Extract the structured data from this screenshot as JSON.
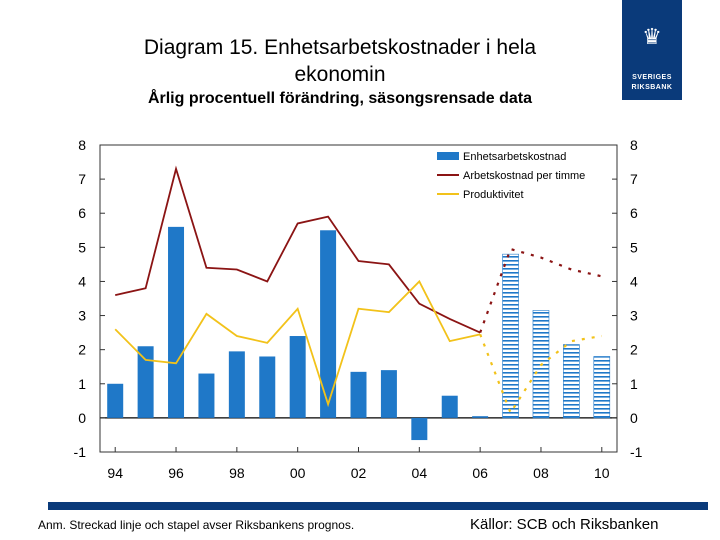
{
  "header": {
    "title_line1": "Diagram 15. Enhetsarbetskostnader i hela",
    "title_line2": "ekonomin",
    "subtitle": "Årlig procentuell förändring, säsongsrensade data"
  },
  "logo": {
    "line1": "SVERIGES",
    "line2": "RIKSBANK",
    "icon": "crown-emblem-icon",
    "color": "#0a3a7a"
  },
  "footer": {
    "note": "Anm. Streckad linje och stapel avser Riksbankens prognos.",
    "source": "Källor: SCB och Riksbanken"
  },
  "colors": {
    "bar": "#1f78c8",
    "labor_cost": "#8b1414",
    "productivity": "#f2c21a",
    "brand": "#0a3a7a"
  },
  "chart_data": {
    "type": "bar",
    "title": "Enhetsarbetskostnader i hela ekonomin",
    "xlabel": "",
    "ylabel": "",
    "ylim": [
      -1,
      8
    ],
    "yticks": [
      "-1",
      "0",
      "1",
      "2",
      "3",
      "4",
      "5",
      "6",
      "7",
      "8"
    ],
    "xtick_labels": [
      "94",
      "96",
      "98",
      "00",
      "02",
      "04",
      "06",
      "08",
      "10"
    ],
    "x": [
      1994,
      1995,
      1996,
      1997,
      1998,
      1999,
      2000,
      2001,
      2002,
      2003,
      2004,
      2005,
      2006,
      2007,
      2008,
      2009,
      2010
    ],
    "forecast_from": 2007,
    "legend_position": "top-right",
    "series": [
      {
        "name": "Enhetsarbetskostnad",
        "kind": "bar",
        "values": [
          1.0,
          2.1,
          5.6,
          1.3,
          1.95,
          1.8,
          2.4,
          5.5,
          1.35,
          1.4,
          -0.65,
          0.65,
          0.05,
          4.8,
          3.15,
          2.15,
          1.8
        ]
      },
      {
        "name": "Arbetskostnad per timme",
        "kind": "line",
        "values": [
          3.6,
          3.8,
          7.3,
          4.4,
          4.35,
          4.0,
          5.7,
          5.9,
          4.6,
          4.5,
          3.35,
          2.9,
          2.5,
          4.95,
          4.7,
          4.35,
          4.15
        ]
      },
      {
        "name": "Produktivitet",
        "kind": "line",
        "values": [
          2.6,
          1.7,
          1.6,
          3.05,
          2.4,
          2.2,
          3.2,
          0.4,
          3.2,
          3.1,
          4.0,
          2.25,
          2.45,
          0.15,
          1.55,
          2.25,
          2.4
        ]
      }
    ]
  }
}
